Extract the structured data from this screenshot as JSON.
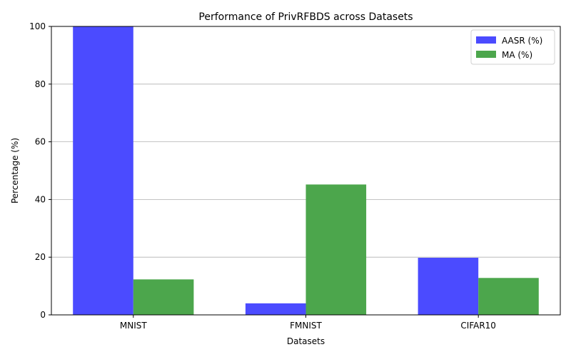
{
  "chart_data": {
    "type": "bar",
    "title": "Performance of PrivRFBDS across Datasets",
    "xlabel": "Datasets",
    "ylabel": "Percentage (%)",
    "categories": [
      "MNIST",
      "FMNIST",
      "CIFAR10"
    ],
    "series": [
      {
        "name": "AASR (%)",
        "values": [
          100,
          4,
          19.8
        ],
        "color": "#4b4bff"
      },
      {
        "name": "MA (%)",
        "values": [
          12.3,
          45.2,
          12.8
        ],
        "color": "#4ca64c"
      }
    ],
    "ylim": [
      0,
      100
    ],
    "yticks": [
      0,
      20,
      40,
      60,
      80,
      100
    ],
    "grid": "y",
    "legend": "top-right"
  }
}
